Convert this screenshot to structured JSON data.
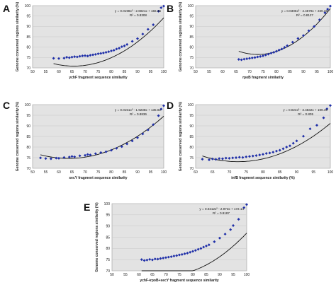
{
  "colors": {
    "plot_bg": "#e3e3e3",
    "frame": "#9a9a9a",
    "grid": "#c9c9c9",
    "point": "#1f2fa8",
    "trend": "#111111"
  },
  "chart_data": [
    {
      "type": "scatter",
      "letter": "A",
      "xlabel": "ychF fragment sequence similarity",
      "ylabel": "Genome conserved regions similarity (%)",
      "xlim": [
        50,
        100
      ],
      "ylim": [
        70,
        100
      ],
      "xticks": [
        50,
        55,
        60,
        65,
        70,
        75,
        80,
        85,
        90,
        95,
        100
      ],
      "yticks": [
        70,
        75,
        80,
        85,
        90,
        95,
        100
      ],
      "eq1": "y = 0.0198x² - 2.6021x + 156.35",
      "eq2": "R² = 0.8308",
      "coef": [
        0.0198,
        -2.6021,
        156.35
      ],
      "points": [
        [
          58,
          74.6
        ],
        [
          60,
          74.5
        ],
        [
          62,
          74.7
        ],
        [
          63,
          75.1
        ],
        [
          64,
          74.9
        ],
        [
          65,
          75.2
        ],
        [
          66,
          75.4
        ],
        [
          67,
          75.3
        ],
        [
          68,
          75.6
        ],
        [
          69,
          75.8
        ],
        [
          70,
          75.9
        ],
        [
          71,
          75.7
        ],
        [
          72,
          76.1
        ],
        [
          73,
          76.3
        ],
        [
          74,
          76.5
        ],
        [
          75,
          76.8
        ],
        [
          76,
          77.0
        ],
        [
          77,
          77.2
        ],
        [
          78,
          77.5
        ],
        [
          79,
          77.8
        ],
        [
          80,
          78.2
        ],
        [
          81,
          78.5
        ],
        [
          82,
          79.1
        ],
        [
          83,
          79.5
        ],
        [
          84,
          80.2
        ],
        [
          85,
          80.6
        ],
        [
          86,
          81.3
        ],
        [
          88,
          82.8
        ],
        [
          90,
          84.1
        ],
        [
          92,
          86.3
        ],
        [
          94,
          88.6
        ],
        [
          96,
          90.8
        ],
        [
          98,
          97.3
        ],
        [
          99,
          99.0
        ],
        [
          100,
          99.8
        ]
      ]
    },
    {
      "type": "scatter",
      "letter": "B",
      "xlabel": "rpoB fragment similarity",
      "ylabel": "Genome conserved regions similarity (%)",
      "xlim": [
        50,
        100
      ],
      "ylim": [
        70,
        100
      ],
      "xticks": [
        50,
        55,
        60,
        65,
        70,
        75,
        80,
        85,
        90,
        95,
        100
      ],
      "yticks": [
        70,
        75,
        80,
        85,
        90,
        95,
        100
      ],
      "eq1": "y = 0.0305x² - 4.4579x + 239.38",
      "eq2": "R² = 0.8127",
      "coef": [
        0.0305,
        -4.4579,
        239.38
      ],
      "points": [
        [
          66,
          74.1
        ],
        [
          67,
          73.9
        ],
        [
          68,
          74.2
        ],
        [
          69,
          74.4
        ],
        [
          70,
          74.6
        ],
        [
          71,
          74.8
        ],
        [
          72,
          75.0
        ],
        [
          73,
          75.3
        ],
        [
          74,
          75.5
        ],
        [
          75,
          75.8
        ],
        [
          76,
          76.2
        ],
        [
          77,
          76.6
        ],
        [
          78,
          77.1
        ],
        [
          79,
          77.5
        ],
        [
          80,
          78.0
        ],
        [
          81,
          78.6
        ],
        [
          82,
          79.1
        ],
        [
          83,
          79.9
        ],
        [
          84,
          80.7
        ],
        [
          86,
          82.4
        ],
        [
          88,
          84.2
        ],
        [
          90,
          85.6
        ],
        [
          92,
          87.9
        ],
        [
          94,
          90.0
        ],
        [
          96,
          93.2
        ],
        [
          98,
          96.6
        ],
        [
          99,
          98.3
        ],
        [
          100,
          99.8
        ]
      ]
    },
    {
      "type": "scatter",
      "letter": "C",
      "xlabel": "secY fragment sequence similarity",
      "ylabel": "Genome conserved regions similarity (%)",
      "xlim": [
        50,
        100
      ],
      "ylim": [
        70,
        100
      ],
      "xticks": [
        50,
        55,
        60,
        65,
        70,
        75,
        80,
        85,
        90,
        95,
        100
      ],
      "yticks": [
        70,
        75,
        80,
        85,
        90,
        95,
        100
      ],
      "eq1": "y = 0.0151x² - 1.9238x + 135.92",
      "eq2": "R² = 0.8836",
      "coef": [
        0.0151,
        -1.9238,
        135.92
      ],
      "points": [
        [
          53,
          74.9
        ],
        [
          55,
          74.6
        ],
        [
          57,
          74.5
        ],
        [
          59,
          74.8
        ],
        [
          60,
          74.7
        ],
        [
          62,
          75.1
        ],
        [
          64,
          75.3
        ],
        [
          65,
          75.6
        ],
        [
          66,
          75.4
        ],
        [
          68,
          75.9
        ],
        [
          70,
          76.1
        ],
        [
          71,
          76.5
        ],
        [
          72,
          76.3
        ],
        [
          74,
          76.9
        ],
        [
          76,
          77.4
        ],
        [
          78,
          77.8
        ],
        [
          80,
          78.5
        ],
        [
          82,
          79.4
        ],
        [
          84,
          80.2
        ],
        [
          86,
          81.5
        ],
        [
          88,
          82.9
        ],
        [
          90,
          84.4
        ],
        [
          92,
          86.2
        ],
        [
          94,
          88.1
        ],
        [
          96,
          90.6
        ],
        [
          98,
          94.8
        ],
        [
          99,
          97.9
        ],
        [
          100,
          99.5
        ]
      ]
    },
    {
      "type": "scatter",
      "letter": "D",
      "xlabel": "infB fragment sequence similarity (%)",
      "ylabel": "Genome conserved regions similarity (%)",
      "xlim": [
        60,
        100
      ],
      "ylim": [
        70,
        100
      ],
      "xticks": [
        60,
        65,
        70,
        75,
        80,
        85,
        90,
        95,
        100
      ],
      "yticks": [
        70,
        75,
        80,
        85,
        90,
        95,
        100
      ],
      "eq1": "y = 0.024x² - 3.4832x + 199.49",
      "eq2": "R² = 0.805",
      "coef": [
        0.024,
        -3.4832,
        199.49
      ],
      "points": [
        [
          62,
          74.3
        ],
        [
          64,
          74.0
        ],
        [
          65,
          74.4
        ],
        [
          66,
          74.2
        ],
        [
          67,
          74.6
        ],
        [
          68,
          74.5
        ],
        [
          69,
          74.8
        ],
        [
          70,
          74.7
        ],
        [
          71,
          74.9
        ],
        [
          72,
          75.0
        ],
        [
          73,
          75.2
        ],
        [
          74,
          75.1
        ],
        [
          75,
          75.4
        ],
        [
          76,
          75.6
        ],
        [
          77,
          75.8
        ],
        [
          78,
          76.0
        ],
        [
          79,
          76.3
        ],
        [
          80,
          76.6
        ],
        [
          81,
          77.0
        ],
        [
          82,
          77.2
        ],
        [
          83,
          77.6
        ],
        [
          84,
          78.1
        ],
        [
          85,
          78.5
        ],
        [
          86,
          79.2
        ],
        [
          87,
          80.0
        ],
        [
          88,
          80.6
        ],
        [
          89,
          81.8
        ],
        [
          90,
          82.9
        ],
        [
          92,
          85.1
        ],
        [
          94,
          88.6
        ],
        [
          96,
          90.3
        ],
        [
          98,
          93.8
        ],
        [
          99,
          98.0
        ],
        [
          100,
          99.6
        ]
      ]
    },
    {
      "type": "scatter",
      "letter": "E",
      "xlabel": "ychF+rpoB+secY fragment sequence similarity",
      "ylabel": "Genome conserved regions similarity (%)",
      "xlim": [
        50,
        100
      ],
      "ylim": [
        70,
        100
      ],
      "xticks": [
        50,
        55,
        60,
        65,
        70,
        75,
        80,
        85,
        90,
        95,
        100
      ],
      "yticks": [
        70,
        75,
        80,
        85,
        90,
        95,
        100
      ],
      "eq1": "y = 0.0212x² - 2.973x + 172.14",
      "eq2": "R² = 0.9187",
      "coef": [
        0.0212,
        -2.973,
        172.14
      ],
      "points": [
        [
          61,
          75.0
        ],
        [
          62,
          74.6
        ],
        [
          63,
          74.8
        ],
        [
          64,
          75.1
        ],
        [
          65,
          74.9
        ],
        [
          66,
          75.3
        ],
        [
          67,
          75.2
        ],
        [
          68,
          75.5
        ],
        [
          69,
          75.7
        ],
        [
          70,
          75.9
        ],
        [
          71,
          76.1
        ],
        [
          72,
          76.3
        ],
        [
          73,
          76.6
        ],
        [
          74,
          76.8
        ],
        [
          75,
          77.1
        ],
        [
          76,
          77.3
        ],
        [
          77,
          77.6
        ],
        [
          78,
          77.9
        ],
        [
          79,
          78.3
        ],
        [
          80,
          78.7
        ],
        [
          81,
          79.1
        ],
        [
          82,
          79.6
        ],
        [
          83,
          80.0
        ],
        [
          84,
          80.6
        ],
        [
          85,
          81.1
        ],
        [
          86,
          81.6
        ],
        [
          88,
          83.0
        ],
        [
          90,
          84.6
        ],
        [
          92,
          86.4
        ],
        [
          94,
          88.4
        ],
        [
          95,
          90.2
        ],
        [
          97,
          93.0
        ],
        [
          99,
          98.2
        ],
        [
          100,
          99.6
        ]
      ]
    }
  ]
}
